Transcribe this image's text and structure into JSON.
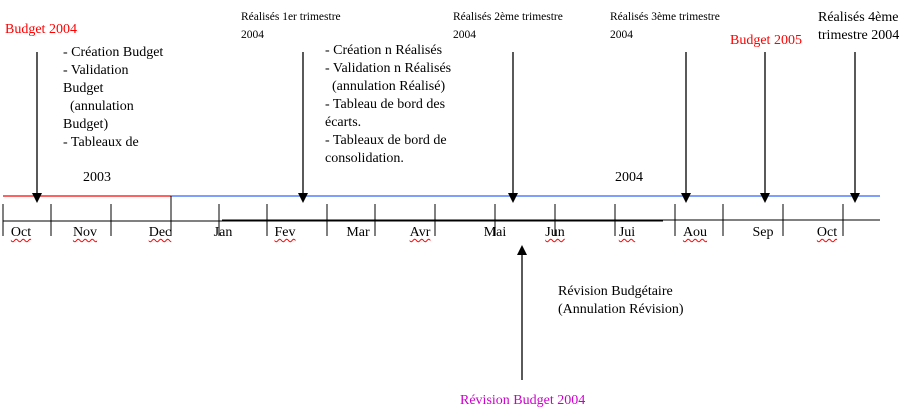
{
  "colors": {
    "budget_label": "#ff0000",
    "revision_label": "#cc00cc",
    "line_2003": "#ff0000",
    "line_2004": "#3366ff"
  },
  "labels": {
    "budget_2004": "Budget 2004",
    "budget_2005": "Budget 2005",
    "q1": [
      "Réalisés 1er trimestre",
      "2004"
    ],
    "q2": [
      "Réalisés 2ème trimestre",
      "2004"
    ],
    "q3": [
      "Réalisés 3ème trimestre",
      "2004"
    ],
    "q4": [
      "Réalisés 4ème",
      "trimestre 2004"
    ],
    "year_2003": "2003",
    "year_2004": "2004",
    "revision_budget": "Révision Budget 2004",
    "revision_desc": [
      "Révision Budgétaire",
      "(Annulation Révision)"
    ]
  },
  "budget_notes": [
    "- Création Budget",
    "- Validation",
    "Budget",
    "  (annulation",
    "Budget)",
    "- Tableaux de"
  ],
  "realises_notes": [
    "- Création n Réalisés",
    "- Validation n Réalisés",
    "  (annulation Réalisé)",
    "- Tableau de bord des",
    "écarts.",
    "- Tableaux de bord de",
    "consolidation."
  ],
  "months": [
    "Oct",
    "Nov",
    "Dec",
    "Jan",
    "Fev",
    "Mar",
    "Avr",
    "Mai",
    "Jun",
    "Jui",
    "Aou",
    "Sep",
    "Oct"
  ]
}
